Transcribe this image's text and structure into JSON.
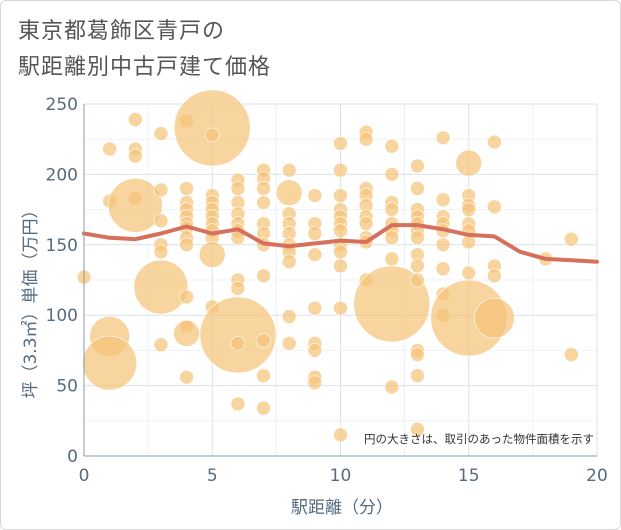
{
  "chart_data": {
    "type": "scatter",
    "title": [
      "東京都葛飾区青戸の",
      "駅距離別中古戸建て価格"
    ],
    "xlabel": "駅距離（分）",
    "ylabel": "坪（3.3㎡）単価（万円）",
    "xlim": [
      0,
      20
    ],
    "ylim": [
      0,
      250
    ],
    "xticks": [
      "0",
      "5",
      "10",
      "15",
      "20"
    ],
    "yticks": [
      "0",
      "50",
      "100",
      "150",
      "200",
      "250"
    ],
    "grid": true,
    "annotation": "円の大きさは、取引のあった物件面積を示す",
    "colors": {
      "bubble": "#f5c47a",
      "line": "#d6705a",
      "grid": "#d9e2ea",
      "axis": "#556b80"
    },
    "bubbles": [
      {
        "x": 0,
        "y": 127,
        "s": 1
      },
      {
        "x": 1,
        "y": 218,
        "s": 1
      },
      {
        "x": 1,
        "y": 181,
        "s": 1
      },
      {
        "x": 1,
        "y": 85,
        "s": 3
      },
      {
        "x": 1,
        "y": 66,
        "s": 4
      },
      {
        "x": 2,
        "y": 239,
        "s": 1
      },
      {
        "x": 2,
        "y": 218,
        "s": 1
      },
      {
        "x": 2,
        "y": 213,
        "s": 1
      },
      {
        "x": 2,
        "y": 183,
        "s": 1
      },
      {
        "x": 2,
        "y": 178,
        "s": 4
      },
      {
        "x": 3,
        "y": 229,
        "s": 1
      },
      {
        "x": 3,
        "y": 189,
        "s": 1
      },
      {
        "x": 3,
        "y": 167,
        "s": 1
      },
      {
        "x": 3,
        "y": 150,
        "s": 1
      },
      {
        "x": 3,
        "y": 145,
        "s": 1
      },
      {
        "x": 3,
        "y": 120,
        "s": 4
      },
      {
        "x": 3,
        "y": 79,
        "s": 1
      },
      {
        "x": 4,
        "y": 238,
        "s": 1
      },
      {
        "x": 4,
        "y": 190,
        "s": 1
      },
      {
        "x": 4,
        "y": 180,
        "s": 1
      },
      {
        "x": 4,
        "y": 175,
        "s": 1
      },
      {
        "x": 4,
        "y": 170,
        "s": 1
      },
      {
        "x": 4,
        "y": 165,
        "s": 1
      },
      {
        "x": 4,
        "y": 162,
        "s": 1
      },
      {
        "x": 4,
        "y": 155,
        "s": 1
      },
      {
        "x": 4,
        "y": 150,
        "s": 1
      },
      {
        "x": 4,
        "y": 113,
        "s": 1
      },
      {
        "x": 4,
        "y": 92,
        "s": 1
      },
      {
        "x": 4,
        "y": 87,
        "s": 2
      },
      {
        "x": 4,
        "y": 56,
        "s": 1
      },
      {
        "x": 5,
        "y": 233,
        "s": 5
      },
      {
        "x": 5,
        "y": 228,
        "s": 1
      },
      {
        "x": 5,
        "y": 185,
        "s": 1
      },
      {
        "x": 5,
        "y": 180,
        "s": 1
      },
      {
        "x": 5,
        "y": 175,
        "s": 1
      },
      {
        "x": 5,
        "y": 170,
        "s": 1
      },
      {
        "x": 5,
        "y": 165,
        "s": 1
      },
      {
        "x": 5,
        "y": 160,
        "s": 1
      },
      {
        "x": 5,
        "y": 155,
        "s": 1
      },
      {
        "x": 5,
        "y": 143,
        "s": 2
      },
      {
        "x": 5,
        "y": 106,
        "s": 1
      },
      {
        "x": 6,
        "y": 196,
        "s": 1
      },
      {
        "x": 6,
        "y": 190,
        "s": 1
      },
      {
        "x": 6,
        "y": 180,
        "s": 1
      },
      {
        "x": 6,
        "y": 172,
        "s": 1
      },
      {
        "x": 6,
        "y": 165,
        "s": 1
      },
      {
        "x": 6,
        "y": 160,
        "s": 1
      },
      {
        "x": 6,
        "y": 155,
        "s": 1
      },
      {
        "x": 6,
        "y": 125,
        "s": 1
      },
      {
        "x": 6,
        "y": 119,
        "s": 1
      },
      {
        "x": 6,
        "y": 86,
        "s": 5
      },
      {
        "x": 6,
        "y": 80,
        "s": 1
      },
      {
        "x": 6,
        "y": 37,
        "s": 1
      },
      {
        "x": 7,
        "y": 203,
        "s": 1
      },
      {
        "x": 7,
        "y": 197,
        "s": 1
      },
      {
        "x": 7,
        "y": 190,
        "s": 1
      },
      {
        "x": 7,
        "y": 180,
        "s": 1
      },
      {
        "x": 7,
        "y": 165,
        "s": 1
      },
      {
        "x": 7,
        "y": 158,
        "s": 1
      },
      {
        "x": 7,
        "y": 150,
        "s": 1
      },
      {
        "x": 7,
        "y": 128,
        "s": 1
      },
      {
        "x": 7,
        "y": 82,
        "s": 1
      },
      {
        "x": 7,
        "y": 57,
        "s": 1
      },
      {
        "x": 7,
        "y": 34,
        "s": 1
      },
      {
        "x": 8,
        "y": 203,
        "s": 1
      },
      {
        "x": 8,
        "y": 187,
        "s": 2
      },
      {
        "x": 8,
        "y": 172,
        "s": 1
      },
      {
        "x": 8,
        "y": 165,
        "s": 1
      },
      {
        "x": 8,
        "y": 158,
        "s": 1
      },
      {
        "x": 8,
        "y": 150,
        "s": 1
      },
      {
        "x": 8,
        "y": 145,
        "s": 1
      },
      {
        "x": 8,
        "y": 138,
        "s": 1
      },
      {
        "x": 8,
        "y": 99,
        "s": 1
      },
      {
        "x": 8,
        "y": 80,
        "s": 1
      },
      {
        "x": 9,
        "y": 185,
        "s": 1
      },
      {
        "x": 9,
        "y": 165,
        "s": 1
      },
      {
        "x": 9,
        "y": 158,
        "s": 1
      },
      {
        "x": 9,
        "y": 143,
        "s": 1
      },
      {
        "x": 9,
        "y": 105,
        "s": 1
      },
      {
        "x": 9,
        "y": 80,
        "s": 1
      },
      {
        "x": 9,
        "y": 75,
        "s": 1
      },
      {
        "x": 9,
        "y": 56,
        "s": 1
      },
      {
        "x": 9,
        "y": 52,
        "s": 1
      },
      {
        "x": 10,
        "y": 222,
        "s": 1
      },
      {
        "x": 10,
        "y": 203,
        "s": 1
      },
      {
        "x": 10,
        "y": 185,
        "s": 1
      },
      {
        "x": 10,
        "y": 175,
        "s": 1
      },
      {
        "x": 10,
        "y": 170,
        "s": 1
      },
      {
        "x": 10,
        "y": 165,
        "s": 1
      },
      {
        "x": 10,
        "y": 160,
        "s": 1
      },
      {
        "x": 10,
        "y": 150,
        "s": 1
      },
      {
        "x": 10,
        "y": 145,
        "s": 1
      },
      {
        "x": 10,
        "y": 135,
        "s": 1
      },
      {
        "x": 10,
        "y": 105,
        "s": 1
      },
      {
        "x": 10,
        "y": 15,
        "s": 1
      },
      {
        "x": 11,
        "y": 230,
        "s": 1
      },
      {
        "x": 11,
        "y": 225,
        "s": 1
      },
      {
        "x": 11,
        "y": 190,
        "s": 1
      },
      {
        "x": 11,
        "y": 185,
        "s": 1
      },
      {
        "x": 11,
        "y": 178,
        "s": 1
      },
      {
        "x": 11,
        "y": 170,
        "s": 1
      },
      {
        "x": 11,
        "y": 165,
        "s": 1
      },
      {
        "x": 11,
        "y": 155,
        "s": 1
      },
      {
        "x": 11,
        "y": 152,
        "s": 1
      },
      {
        "x": 11,
        "y": 125,
        "s": 1
      },
      {
        "x": 12,
        "y": 220,
        "s": 1
      },
      {
        "x": 12,
        "y": 200,
        "s": 1
      },
      {
        "x": 12,
        "y": 180,
        "s": 1
      },
      {
        "x": 12,
        "y": 175,
        "s": 1
      },
      {
        "x": 12,
        "y": 165,
        "s": 1
      },
      {
        "x": 12,
        "y": 160,
        "s": 1
      },
      {
        "x": 12,
        "y": 155,
        "s": 1
      },
      {
        "x": 12,
        "y": 140,
        "s": 1
      },
      {
        "x": 12,
        "y": 108,
        "s": 5
      },
      {
        "x": 12,
        "y": 49,
        "s": 1
      },
      {
        "x": 13,
        "y": 206,
        "s": 1
      },
      {
        "x": 13,
        "y": 190,
        "s": 1
      },
      {
        "x": 13,
        "y": 175,
        "s": 1
      },
      {
        "x": 13,
        "y": 170,
        "s": 1
      },
      {
        "x": 13,
        "y": 165,
        "s": 1
      },
      {
        "x": 13,
        "y": 160,
        "s": 1
      },
      {
        "x": 13,
        "y": 155,
        "s": 1
      },
      {
        "x": 13,
        "y": 143,
        "s": 1
      },
      {
        "x": 13,
        "y": 135,
        "s": 1
      },
      {
        "x": 13,
        "y": 125,
        "s": 1
      },
      {
        "x": 13,
        "y": 75,
        "s": 1
      },
      {
        "x": 13,
        "y": 72,
        "s": 1
      },
      {
        "x": 13,
        "y": 57,
        "s": 1
      },
      {
        "x": 13,
        "y": 19,
        "s": 1
      },
      {
        "x": 14,
        "y": 226,
        "s": 1
      },
      {
        "x": 14,
        "y": 182,
        "s": 1
      },
      {
        "x": 14,
        "y": 170,
        "s": 1
      },
      {
        "x": 14,
        "y": 165,
        "s": 1
      },
      {
        "x": 14,
        "y": 160,
        "s": 1
      },
      {
        "x": 14,
        "y": 150,
        "s": 1
      },
      {
        "x": 14,
        "y": 133,
        "s": 1
      },
      {
        "x": 14,
        "y": 115,
        "s": 1
      },
      {
        "x": 14,
        "y": 100,
        "s": 1
      },
      {
        "x": 15,
        "y": 208,
        "s": 2
      },
      {
        "x": 15,
        "y": 185,
        "s": 1
      },
      {
        "x": 15,
        "y": 178,
        "s": 1
      },
      {
        "x": 15,
        "y": 175,
        "s": 1
      },
      {
        "x": 15,
        "y": 165,
        "s": 1
      },
      {
        "x": 15,
        "y": 160,
        "s": 1
      },
      {
        "x": 15,
        "y": 152,
        "s": 1
      },
      {
        "x": 15,
        "y": 130,
        "s": 1
      },
      {
        "x": 15,
        "y": 98,
        "s": 5
      },
      {
        "x": 16,
        "y": 223,
        "s": 1
      },
      {
        "x": 16,
        "y": 177,
        "s": 1
      },
      {
        "x": 16,
        "y": 135,
        "s": 1
      },
      {
        "x": 16,
        "y": 128,
        "s": 1
      },
      {
        "x": 16,
        "y": 98,
        "s": 3
      },
      {
        "x": 18,
        "y": 140,
        "s": 1
      },
      {
        "x": 19,
        "y": 154,
        "s": 1
      },
      {
        "x": 19,
        "y": 72,
        "s": 1
      }
    ],
    "trend": [
      {
        "x": 0,
        "y": 158
      },
      {
        "x": 1,
        "y": 155
      },
      {
        "x": 2,
        "y": 154
      },
      {
        "x": 3,
        "y": 158
      },
      {
        "x": 4,
        "y": 163
      },
      {
        "x": 5,
        "y": 158
      },
      {
        "x": 6,
        "y": 161
      },
      {
        "x": 7,
        "y": 151
      },
      {
        "x": 8,
        "y": 149
      },
      {
        "x": 9,
        "y": 151
      },
      {
        "x": 10,
        "y": 153
      },
      {
        "x": 11,
        "y": 152
      },
      {
        "x": 12,
        "y": 164
      },
      {
        "x": 13,
        "y": 164
      },
      {
        "x": 14,
        "y": 161
      },
      {
        "x": 15,
        "y": 157
      },
      {
        "x": 16,
        "y": 156
      },
      {
        "x": 17,
        "y": 145
      },
      {
        "x": 18,
        "y": 140
      },
      {
        "x": 19,
        "y": 139
      },
      {
        "x": 20,
        "y": 138
      }
    ]
  }
}
